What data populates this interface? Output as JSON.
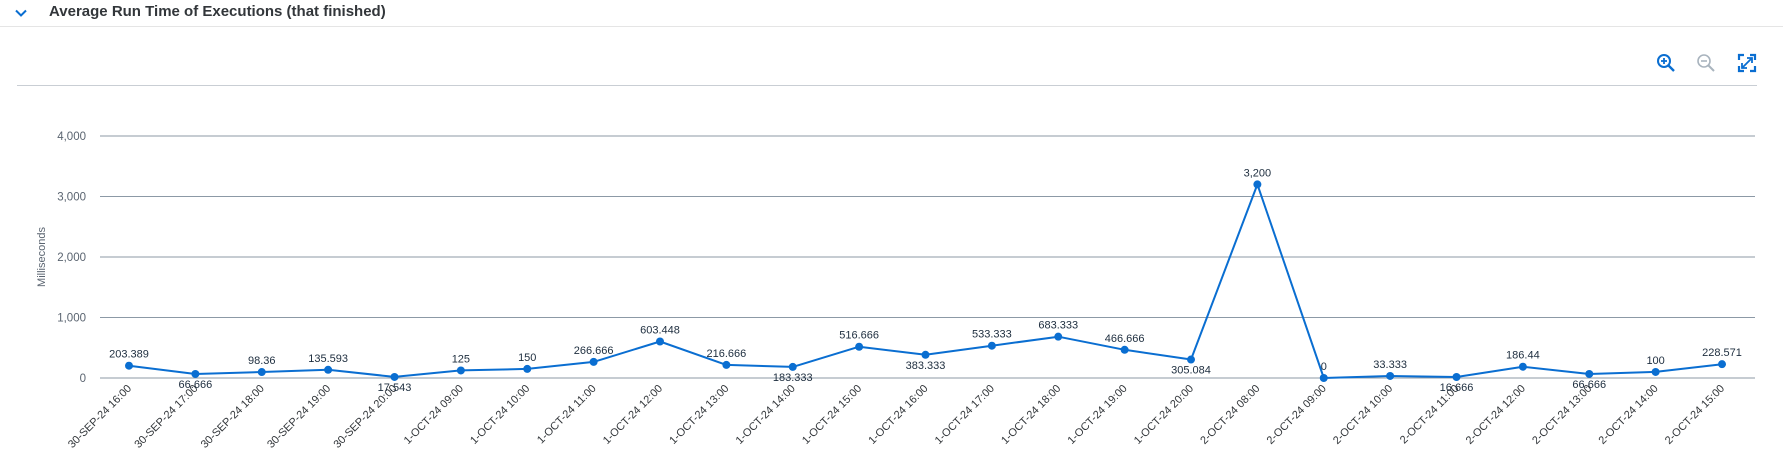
{
  "panel": {
    "title": "Average Run Time of Executions (that finished)",
    "collapse_icon": "chevron-down-icon"
  },
  "toolbar": {
    "zoom_in_icon": "zoom-in-icon",
    "zoom_out_icon": "zoom-out-icon",
    "fullscreen_icon": "fullscreen-icon",
    "zoom_out_enabled": false
  },
  "colors": {
    "series": "#0a6ed1",
    "grid": "#8c99a6",
    "zoom_disabled": "#a9b4be"
  },
  "chart_data": {
    "type": "line",
    "title": "",
    "xlabel": "",
    "ylabel": "Milliseconds",
    "ylim": [
      0,
      4000
    ],
    "yticks": [
      0,
      1000,
      2000,
      3000,
      4000
    ],
    "ytick_labels": [
      "0",
      "1,000",
      "2,000",
      "3,000",
      "4,000"
    ],
    "grid": true,
    "legend": "none",
    "categories": [
      "30-SEP-24 16:00",
      "30-SEP-24 17:00",
      "30-SEP-24 18:00",
      "30-SEP-24 19:00",
      "30-SEP-24 20:00",
      "1-OCT-24 09:00",
      "1-OCT-24 10:00",
      "1-OCT-24 11:00",
      "1-OCT-24 12:00",
      "1-OCT-24 13:00",
      "1-OCT-24 14:00",
      "1-OCT-24 15:00",
      "1-OCT-24 16:00",
      "1-OCT-24 17:00",
      "1-OCT-24 18:00",
      "1-OCT-24 19:00",
      "1-OCT-24 20:00",
      "2-OCT-24 08:00",
      "2-OCT-24 09:00",
      "2-OCT-24 10:00",
      "2-OCT-24 11:00",
      "2-OCT-24 12:00",
      "2-OCT-24 13:00",
      "2-OCT-24 14:00",
      "2-OCT-24 15:00"
    ],
    "series": [
      {
        "values": [
          203.389,
          66.666,
          98.36,
          135.593,
          17.543,
          125,
          150,
          266.666,
          603.448,
          216.666,
          183.333,
          516.666,
          383.333,
          533.333,
          683.333,
          466.666,
          305.084,
          3200,
          0,
          33.333,
          16.666,
          186.44,
          66.666,
          100,
          228.571
        ],
        "labels": [
          "203.389",
          "66.666",
          "98.36",
          "135.593",
          "17.543",
          "125",
          "150",
          "266.666",
          "603.448",
          "216.666",
          "183.333",
          "516.666",
          "383.333",
          "533.333",
          "683.333",
          "466.666",
          "305.084",
          "3,200",
          "0",
          "33.333",
          "16.666",
          "186.44",
          "66.666",
          "100",
          "228.571"
        ],
        "label_positions": [
          "above",
          "below",
          "above",
          "above",
          "below",
          "above",
          "above",
          "above",
          "above",
          "above",
          "below",
          "above",
          "below",
          "above",
          "above",
          "above",
          "below",
          "above",
          "above",
          "above",
          "below",
          "above",
          "below",
          "above",
          "above"
        ]
      }
    ]
  }
}
